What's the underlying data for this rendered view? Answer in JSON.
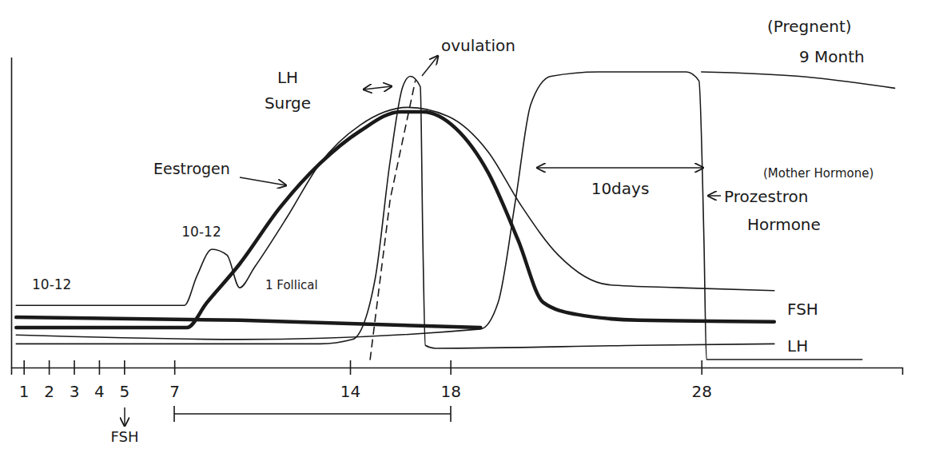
{
  "chart_data": {
    "type": "line",
    "xlim": [
      0.5,
      36
    ],
    "ylim": [
      0,
      10.5
    ],
    "xticks": [
      1,
      2,
      3,
      4,
      5,
      7,
      14,
      18,
      28
    ],
    "yticks": [],
    "tick_labels": "x",
    "grid": false,
    "series": [
      {
        "color": "#1a1a1a",
        "line_style": "solid",
        "x": [
          0.7,
          7.4,
          7.9,
          8.5,
          9.1,
          9.6,
          10.2,
          11.5,
          12.8,
          14.4,
          16.3,
          17.9,
          19.5,
          20.8,
          22.3,
          24.3,
          27.1,
          30.9
        ],
        "values": [
          2.1,
          2.1,
          3.1,
          4.0,
          3.8,
          2.7,
          3.4,
          5.1,
          6.9,
          8.2,
          8.8,
          8.5,
          7.3,
          5.5,
          3.8,
          2.8,
          2.7,
          2.6
        ]
      },
      {
        "color": "#1a1a1a",
        "line_style": "bold",
        "x": [
          0.7,
          7.5,
          8.3,
          9.6,
          11.2,
          12.8,
          14.4,
          16.0,
          16.9,
          18.2,
          19.5,
          20.7,
          21.7,
          23.0,
          25.5,
          30.9
        ],
        "values": [
          1.35,
          1.35,
          2.2,
          3.5,
          5.4,
          6.9,
          8.0,
          8.65,
          8.65,
          8.1,
          6.6,
          4.3,
          2.2,
          1.8,
          1.6,
          1.55
        ]
      },
      {
        "color": "#1a1a1a",
        "line_style": "bold",
        "x": [
          0.7,
          9.6,
          19.2
        ],
        "values": [
          1.7,
          1.6,
          1.35
        ]
      },
      {
        "color": "#1a1a1a",
        "line_style": "solid",
        "x": [
          0.7,
          12.8,
          14.1,
          15.0,
          15.6,
          16.1,
          16.4,
          16.8,
          16.9,
          17.0,
          17.4,
          25.5,
          30.9
        ],
        "values": [
          0.8,
          0.8,
          0.95,
          3.0,
          7.0,
          9.5,
          9.85,
          9.5,
          4.3,
          0.75,
          0.65,
          0.75,
          0.8
        ]
      },
      {
        "color": "#1a1a1a",
        "line_style": "solid",
        "x": [
          0.7,
          9.6,
          19.2,
          19.9,
          20.6,
          21.2,
          22.0,
          23.9,
          27.4,
          27.9,
          28.1,
          28.2,
          34.4
        ],
        "values": [
          1.1,
          0.95,
          1.3,
          2.2,
          5.7,
          8.9,
          9.85,
          10.0,
          10.0,
          9.7,
          4.3,
          0.27,
          0.27
        ]
      },
      {
        "color": "#1a1a1a",
        "line_style": "solid",
        "x": [
          28.0,
          31.9,
          35.7
        ],
        "values": [
          10.0,
          9.85,
          9.45
        ]
      },
      {
        "color": "#1a1a1a",
        "line_style": "dashed",
        "x": [
          14.8,
          15.6,
          16.6
        ],
        "values": [
          0.27,
          5.7,
          9.7
        ]
      }
    ],
    "annotations": [
      "(Pregnent)",
      "9 Month",
      "LH Surge",
      "ovulation",
      "Eestrogen",
      "10-12",
      "10-12",
      "1 Follical",
      "10days",
      "(Mother Hormone)",
      "Prozestron",
      "Hormone",
      "FSH",
      "LH",
      "FSH"
    ]
  }
}
